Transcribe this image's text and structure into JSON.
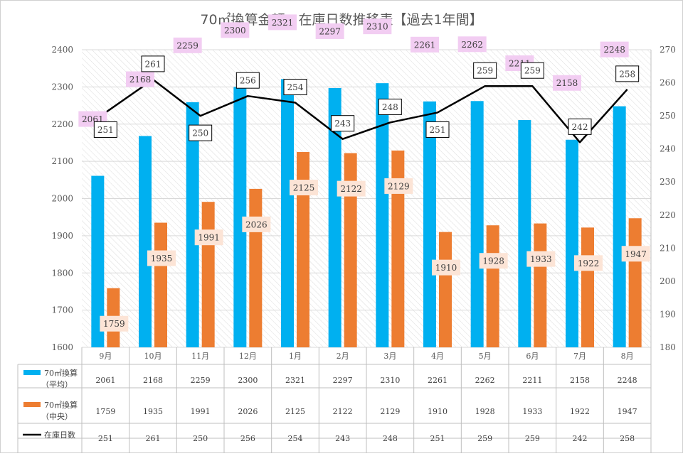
{
  "chart_data": {
    "type": "bar",
    "title": "70㎡換算金額・在庫日数推移表【過去1年間】",
    "categories": [
      "9月",
      "10月",
      "11月",
      "12月",
      "1月",
      "2月",
      "3月",
      "4月",
      "5月",
      "6月",
      "7月",
      "8月"
    ],
    "ylim": [
      1600,
      2400
    ],
    "y2lim": [
      180,
      270
    ],
    "y_ticks": [
      1600,
      1700,
      1800,
      1900,
      2000,
      2100,
      2200,
      2300,
      2400
    ],
    "y2_ticks": [
      180,
      190,
      200,
      210,
      220,
      230,
      240,
      250,
      260,
      270
    ],
    "grid": true,
    "legend": "bottom-table",
    "series": [
      {
        "name": "70㎡換算",
        "name_sub": "（平均）",
        "kind": "bar",
        "axis": "left",
        "color": "#00b0f0",
        "label_bg": "#f2cdf2",
        "values": [
          2061,
          2168,
          2259,
          2300,
          2321,
          2297,
          2310,
          2261,
          2262,
          2211,
          2158,
          2248
        ]
      },
      {
        "name": "70㎡換算",
        "name_sub": "（中央）",
        "kind": "bar",
        "axis": "left",
        "color": "#ed7d31",
        "label_bg": "#fce4d6",
        "values": [
          1759,
          1935,
          1991,
          2026,
          2125,
          2122,
          2129,
          1910,
          1928,
          1933,
          1922,
          1947
        ]
      },
      {
        "name": "在庫日数",
        "name_sub": "",
        "kind": "line",
        "axis": "right",
        "color": "#000000",
        "label_bg": "#ffffff",
        "values": [
          251,
          261,
          250,
          256,
          254,
          243,
          248,
          251,
          259,
          259,
          242,
          258
        ]
      }
    ]
  }
}
